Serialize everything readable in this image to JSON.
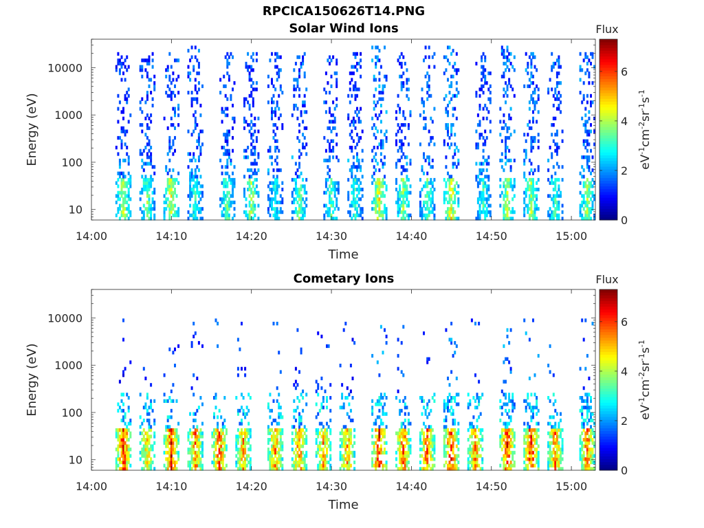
{
  "figure_title": "RPCICA150626T14.PNG",
  "chart_data": [
    {
      "type": "heatmap",
      "title": "Solar Wind Ions",
      "xlabel": "Time",
      "ylabel": "Energy (eV)",
      "x_ticks": [
        "14:00",
        "14:10",
        "14:20",
        "14:30",
        "14:40",
        "14:50",
        "15:00"
      ],
      "y_ticks": [
        "10",
        "100",
        "1000",
        "10000"
      ],
      "y_scale": "log",
      "x_range": [
        "14:00",
        "15:03"
      ],
      "y_range": [
        6,
        40000
      ],
      "colorbar": {
        "label": "Flux",
        "unit_label": "eV-1cm-2sr-1s-1",
        "ticks": [
          "0",
          "2",
          "4",
          "6"
        ],
        "range": [
          0,
          7.3
        ],
        "colormap": "jet"
      },
      "sweeps": [
        {
          "time": "14:04",
          "core_flux": 4.5,
          "high_energy_extent": 20000,
          "high_energy_flux": 1.2
        },
        {
          "time": "14:07",
          "core_flux": 4.0,
          "high_energy_extent": 20000,
          "high_energy_flux": 1.3
        },
        {
          "time": "14:10",
          "core_flux": 4.8,
          "high_energy_extent": 20000,
          "high_energy_flux": 1.4
        },
        {
          "time": "14:13",
          "core_flux": 3.5,
          "high_energy_extent": 30000,
          "high_energy_flux": 1.4
        },
        {
          "time": "14:17",
          "core_flux": 3.8,
          "high_energy_extent": 20000,
          "high_energy_flux": 1.3
        },
        {
          "time": "14:20",
          "core_flux": 4.2,
          "high_energy_extent": 20000,
          "high_energy_flux": 1.3
        },
        {
          "time": "14:23",
          "core_flux": 3.2,
          "high_energy_extent": 20000,
          "high_energy_flux": 1.4
        },
        {
          "time": "14:26",
          "core_flux": 3.9,
          "high_energy_extent": 20000,
          "high_energy_flux": 1.4
        },
        {
          "time": "14:30",
          "core_flux": 3.6,
          "high_energy_extent": 20000,
          "high_energy_flux": 1.3
        },
        {
          "time": "14:33",
          "core_flux": 3.4,
          "high_energy_extent": 20000,
          "high_energy_flux": 1.3
        },
        {
          "time": "14:36",
          "core_flux": 4.9,
          "high_energy_extent": 30000,
          "high_energy_flux": 1.6
        },
        {
          "time": "14:39",
          "core_flux": 4.2,
          "high_energy_extent": 20000,
          "high_energy_flux": 1.4
        },
        {
          "time": "14:42",
          "core_flux": 3.8,
          "high_energy_extent": 30000,
          "high_energy_flux": 1.4
        },
        {
          "time": "14:45",
          "core_flux": 5.0,
          "high_energy_extent": 30000,
          "high_energy_flux": 1.6
        },
        {
          "time": "14:49",
          "core_flux": 3.5,
          "high_energy_extent": 20000,
          "high_energy_flux": 1.3
        },
        {
          "time": "14:52",
          "core_flux": 4.5,
          "high_energy_extent": 30000,
          "high_energy_flux": 1.5
        },
        {
          "time": "14:55",
          "core_flux": 4.3,
          "high_energy_extent": 20000,
          "high_energy_flux": 1.5
        },
        {
          "time": "14:58",
          "core_flux": 3.6,
          "high_energy_extent": 20000,
          "high_energy_flux": 1.4
        },
        {
          "time": "15:02",
          "core_flux": 4.2,
          "high_energy_extent": 20000,
          "high_energy_flux": 1.5
        }
      ]
    },
    {
      "type": "heatmap",
      "title": "Cometary Ions",
      "xlabel": "Time",
      "ylabel": "Energy (eV)",
      "x_ticks": [
        "14:00",
        "14:10",
        "14:20",
        "14:30",
        "14:40",
        "14:50",
        "15:00"
      ],
      "y_ticks": [
        "10",
        "100",
        "1000",
        "10000"
      ],
      "y_scale": "log",
      "x_range": [
        "14:00",
        "15:03"
      ],
      "y_range": [
        6,
        40000
      ],
      "colorbar": {
        "label": "Flux",
        "unit_label": "eV-1cm-2sr-1s-1",
        "ticks": [
          "0",
          "2",
          "4",
          "6"
        ],
        "range": [
          0,
          7.3
        ],
        "colormap": "jet"
      },
      "sweeps": [
        {
          "time": "14:04",
          "core_flux": 6.8,
          "high_energy_extent": 10000,
          "high_energy_flux": 1.0
        },
        {
          "time": "14:07",
          "core_flux": 5.5,
          "high_energy_extent": 1000,
          "high_energy_flux": 1.0
        },
        {
          "time": "14:10",
          "core_flux": 6.8,
          "high_energy_extent": 3000,
          "high_energy_flux": 1.1
        },
        {
          "time": "14:13",
          "core_flux": 6.2,
          "high_energy_extent": 10000,
          "high_energy_flux": 1.2
        },
        {
          "time": "14:16",
          "core_flux": 6.4,
          "high_energy_extent": 10000,
          "high_energy_flux": 1.3
        },
        {
          "time": "14:19",
          "core_flux": 5.8,
          "high_energy_extent": 10000,
          "high_energy_flux": 1.2
        },
        {
          "time": "14:23",
          "core_flux": 6.0,
          "high_energy_extent": 10000,
          "high_energy_flux": 1.2
        },
        {
          "time": "14:26",
          "core_flux": 6.1,
          "high_energy_extent": 10000,
          "high_energy_flux": 1.3
        },
        {
          "time": "14:29",
          "core_flux": 5.8,
          "high_energy_extent": 10000,
          "high_energy_flux": 1.2
        },
        {
          "time": "14:32",
          "core_flux": 5.9,
          "high_energy_extent": 10000,
          "high_energy_flux": 1.2
        },
        {
          "time": "14:36",
          "core_flux": 6.8,
          "high_energy_extent": 10000,
          "high_energy_flux": 1.6
        },
        {
          "time": "14:39",
          "core_flux": 6.4,
          "high_energy_extent": 10000,
          "high_energy_flux": 1.3
        },
        {
          "time": "14:42",
          "core_flux": 6.3,
          "high_energy_extent": 10000,
          "high_energy_flux": 1.3
        },
        {
          "time": "14:45",
          "core_flux": 6.9,
          "high_energy_extent": 10000,
          "high_energy_flux": 1.7
        },
        {
          "time": "14:48",
          "core_flux": 6.0,
          "high_energy_extent": 10000,
          "high_energy_flux": 1.4
        },
        {
          "time": "14:52",
          "core_flux": 6.7,
          "high_energy_extent": 10000,
          "high_energy_flux": 1.6
        },
        {
          "time": "14:55",
          "core_flux": 6.8,
          "high_energy_extent": 10000,
          "high_energy_flux": 1.6
        },
        {
          "time": "14:58",
          "core_flux": 6.1,
          "high_energy_extent": 10000,
          "high_energy_flux": 1.3
        },
        {
          "time": "15:02",
          "core_flux": 6.5,
          "high_energy_extent": 10000,
          "high_energy_flux": 1.5
        }
      ]
    }
  ]
}
